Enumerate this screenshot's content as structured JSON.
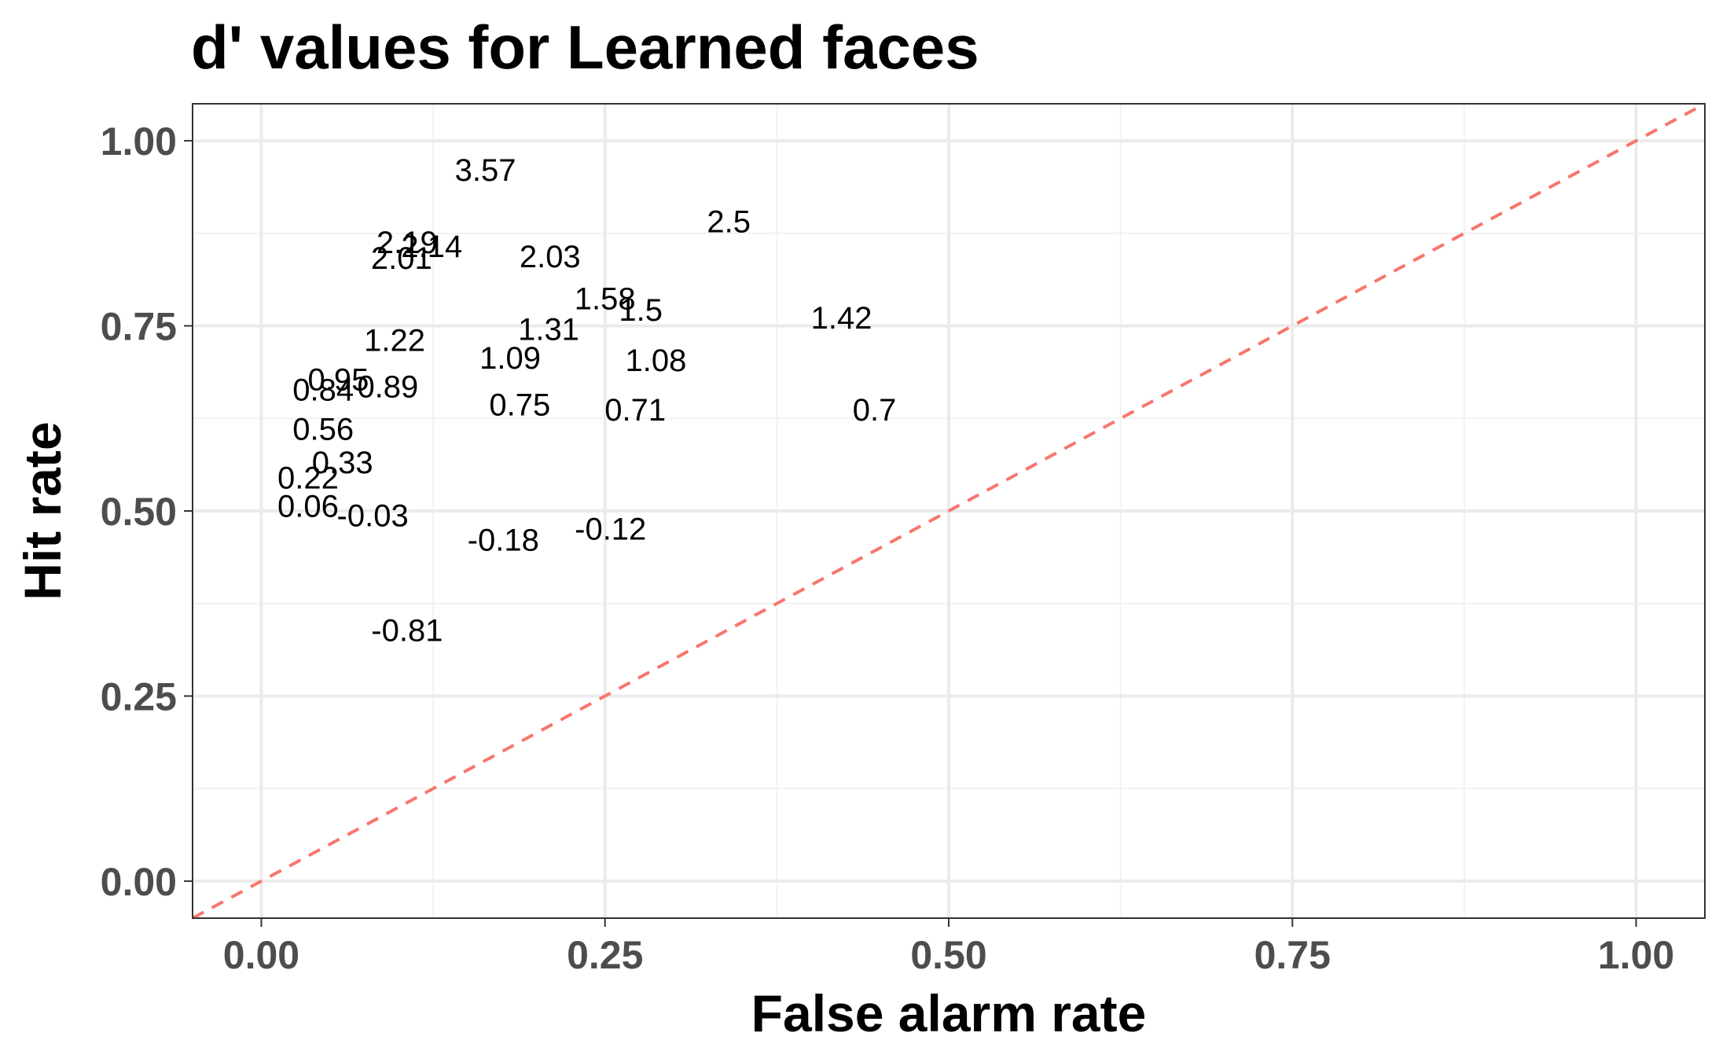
{
  "chart_data": {
    "type": "scatter",
    "title": "d' values for Learned faces",
    "xlabel": "False alarm rate",
    "ylabel": "Hit rate",
    "xlim": [
      -0.05,
      1.05
    ],
    "ylim": [
      -0.05,
      1.05
    ],
    "x_ticks": [
      0.0,
      0.25,
      0.5,
      0.75,
      1.0
    ],
    "x_tick_labels": [
      "0.00",
      "0.25",
      "0.50",
      "0.75",
      "1.00"
    ],
    "y_ticks": [
      0.0,
      0.25,
      0.5,
      0.75,
      1.0
    ],
    "y_tick_labels": [
      "0.00",
      "0.25",
      "0.50",
      "0.75",
      "1.00"
    ],
    "grid": true,
    "reference_line": {
      "from": [
        -0.05,
        -0.05
      ],
      "to": [
        1.05,
        1.05
      ],
      "style": "dashed",
      "color": "#F8766D"
    },
    "points": [
      {
        "x": 0.163,
        "y": 0.96,
        "label": "3.57"
      },
      {
        "x": 0.34,
        "y": 0.89,
        "label": "2.5"
      },
      {
        "x": 0.106,
        "y": 0.862,
        "label": "2.19"
      },
      {
        "x": 0.124,
        "y": 0.857,
        "label": "2.14"
      },
      {
        "x": 0.21,
        "y": 0.843,
        "label": "2.03"
      },
      {
        "x": 0.102,
        "y": 0.841,
        "label": "2.01"
      },
      {
        "x": 0.25,
        "y": 0.786,
        "label": "1.58"
      },
      {
        "x": 0.276,
        "y": 0.771,
        "label": "1.5"
      },
      {
        "x": 0.422,
        "y": 0.76,
        "label": "1.42"
      },
      {
        "x": 0.209,
        "y": 0.745,
        "label": "1.31"
      },
      {
        "x": 0.097,
        "y": 0.73,
        "label": "1.22"
      },
      {
        "x": 0.181,
        "y": 0.706,
        "label": "1.09"
      },
      {
        "x": 0.287,
        "y": 0.703,
        "label": "1.08"
      },
      {
        "x": 0.056,
        "y": 0.677,
        "label": "0.95"
      },
      {
        "x": 0.092,
        "y": 0.667,
        "label": "0.89"
      },
      {
        "x": 0.045,
        "y": 0.663,
        "label": "0.84"
      },
      {
        "x": 0.188,
        "y": 0.643,
        "label": "0.75"
      },
      {
        "x": 0.272,
        "y": 0.636,
        "label": "0.71"
      },
      {
        "x": 0.446,
        "y": 0.636,
        "label": "0.7"
      },
      {
        "x": 0.045,
        "y": 0.61,
        "label": "0.56"
      },
      {
        "x": 0.059,
        "y": 0.565,
        "label": "0.33"
      },
      {
        "x": 0.034,
        "y": 0.544,
        "label": "0.22"
      },
      {
        "x": 0.034,
        "y": 0.506,
        "label": "0.06"
      },
      {
        "x": 0.081,
        "y": 0.493,
        "label": "-0.03"
      },
      {
        "x": 0.176,
        "y": 0.46,
        "label": "-0.18"
      },
      {
        "x": 0.254,
        "y": 0.475,
        "label": "-0.12"
      },
      {
        "x": 0.106,
        "y": 0.338,
        "label": "-0.81"
      }
    ]
  }
}
